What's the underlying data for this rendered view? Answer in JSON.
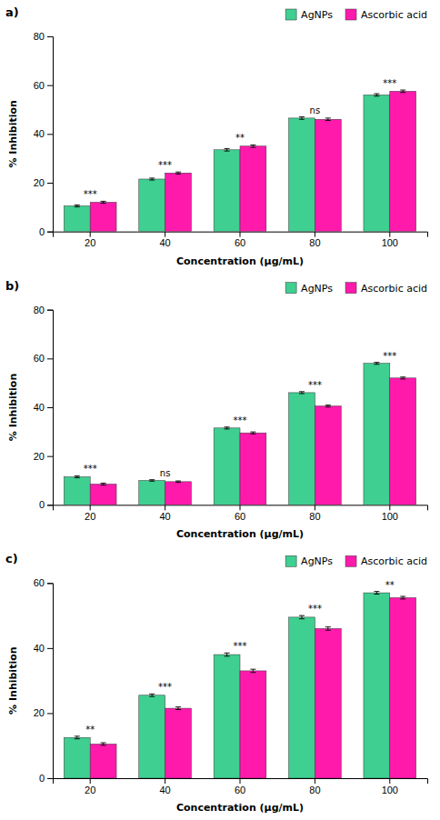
{
  "chart_data": [
    {
      "type": "bar",
      "title": "a)",
      "categories": [
        20,
        40,
        60,
        80,
        100
      ],
      "series": [
        {
          "name": "AgNPs",
          "color": "#3ecf91",
          "values": [
            10.5,
            21.5,
            33.5,
            46.5,
            56.0
          ],
          "errors": [
            0.4,
            0.4,
            0.5,
            0.5,
            0.5
          ]
        },
        {
          "name": "Ascorbic acid",
          "color": "#ff1aac",
          "values": [
            12.0,
            24.0,
            35.0,
            46.0,
            57.5
          ],
          "errors": [
            0.4,
            0.4,
            0.5,
            0.5,
            0.5
          ]
        }
      ],
      "annotations": [
        "***",
        "***",
        "**",
        "ns",
        "***"
      ],
      "xlabel": "Concentration (µg/mL)",
      "ylabel": "% Inhibition",
      "ylim": [
        0,
        80
      ],
      "yticks": [
        0,
        20,
        40,
        60,
        80
      ],
      "grid": false,
      "legend": "upper right"
    },
    {
      "type": "bar",
      "title": "b)",
      "categories": [
        20,
        40,
        60,
        80,
        100
      ],
      "series": [
        {
          "name": "AgNPs",
          "color": "#3ecf91",
          "values": [
            11.5,
            10.0,
            31.5,
            46.0,
            58.0
          ],
          "errors": [
            0.4,
            0.3,
            0.4,
            0.4,
            0.4
          ]
        },
        {
          "name": "Ascorbic acid",
          "color": "#ff1aac",
          "values": [
            8.5,
            9.5,
            29.5,
            40.5,
            52.0
          ],
          "errors": [
            0.4,
            0.3,
            0.4,
            0.4,
            0.4
          ]
        }
      ],
      "annotations": [
        "***",
        "ns",
        "***",
        "***",
        "***"
      ],
      "xlabel": "Concentration (µg/mL)",
      "ylabel": "% Inhibition",
      "ylim": [
        0,
        80
      ],
      "yticks": [
        0,
        20,
        40,
        60,
        80
      ],
      "grid": false,
      "legend": "upper right"
    },
    {
      "type": "bar",
      "title": "c)",
      "categories": [
        20,
        40,
        60,
        80,
        100
      ],
      "series": [
        {
          "name": "AgNPs",
          "color": "#3ecf91",
          "values": [
            12.5,
            25.5,
            38.0,
            49.5,
            57.0
          ],
          "errors": [
            0.4,
            0.4,
            0.5,
            0.5,
            0.4
          ]
        },
        {
          "name": "Ascorbic acid",
          "color": "#ff1aac",
          "values": [
            10.5,
            21.5,
            33.0,
            46.0,
            55.5
          ],
          "errors": [
            0.4,
            0.4,
            0.5,
            0.5,
            0.4
          ]
        }
      ],
      "annotations": [
        "**",
        "***",
        "***",
        "***",
        "**"
      ],
      "xlabel": "Concentration (µg/mL)",
      "ylabel": "% Inhibition",
      "ylim": [
        0,
        60
      ],
      "yticks": [
        0,
        20,
        40,
        60
      ],
      "grid": false,
      "legend": "upper right"
    }
  ]
}
